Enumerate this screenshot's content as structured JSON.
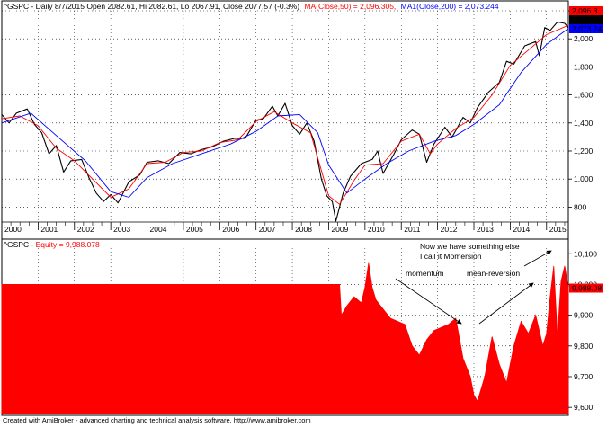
{
  "chart_data": [
    {
      "type": "line",
      "header": {
        "symbol_text": "^GSPC - Daily 8/7/2015 Open 2082.61, Hi 2082.61, Lo 2067.91, Close 2077.57 (-0.3%)",
        "ma50_text": "MA(Close,50) = 2,096.305,",
        "ma200_text": "MA1(Close,200) = 2,073.244"
      },
      "colors": {
        "price": "#000000",
        "ma50": "#ff0000",
        "ma200": "#0000ff"
      },
      "ylim": [
        700,
        2200
      ],
      "y_ticks": [
        800,
        1000,
        1200,
        1400,
        1600,
        1800,
        2000,
        2200
      ],
      "y_tick_labels": [
        "800",
        "1,000",
        "1,200",
        "1,400",
        "1,600",
        "1,800",
        "2,000",
        "2,200"
      ],
      "x_ticks": [
        "2000",
        "2001",
        "2002",
        "2003",
        "2004",
        "2005",
        "2006",
        "2007",
        "2008",
        "2009",
        "2010",
        "2011",
        "2012",
        "2013",
        "2014",
        "2015"
      ],
      "xlim": [
        2000.0,
        2015.6
      ],
      "last_labels": [
        {
          "text": "2,096.3",
          "value": 2096.3,
          "bg": "#ff0000",
          "fg": "#ffffff"
        },
        {
          "text": "2,077.57",
          "value": 2077.57,
          "bg": "#000000",
          "fg": "#ffffff"
        },
        {
          "text": "2,073.24",
          "value": 2073.24,
          "bg": "#0000ff",
          "fg": "#ffffff"
        }
      ],
      "series": [
        {
          "name": "^GSPC",
          "x": [
            2000.0,
            2000.2,
            2000.4,
            2000.7,
            2000.9,
            2001.1,
            2001.3,
            2001.5,
            2001.7,
            2001.9,
            2002.2,
            2002.4,
            2002.6,
            2002.8,
            2003.0,
            2003.2,
            2003.5,
            2003.8,
            2004.0,
            2004.3,
            2004.6,
            2004.9,
            2005.2,
            2005.5,
            2005.8,
            2006.1,
            2006.4,
            2006.7,
            2007.0,
            2007.2,
            2007.45,
            2007.6,
            2007.8,
            2008.0,
            2008.2,
            2008.4,
            2008.6,
            2008.8,
            2008.95,
            2009.1,
            2009.2,
            2009.4,
            2009.6,
            2009.9,
            2010.2,
            2010.35,
            2010.5,
            2010.8,
            2011.0,
            2011.3,
            2011.5,
            2011.7,
            2011.9,
            2012.2,
            2012.4,
            2012.7,
            2012.9,
            2013.1,
            2013.4,
            2013.7,
            2013.9,
            2014.1,
            2014.4,
            2014.7,
            2014.8,
            2014.95,
            2015.1,
            2015.3,
            2015.5,
            2015.6
          ],
          "y": [
            1460,
            1400,
            1470,
            1500,
            1390,
            1330,
            1180,
            1240,
            1050,
            1130,
            1140,
            1010,
            900,
            840,
            890,
            830,
            980,
            1030,
            1120,
            1130,
            1110,
            1190,
            1180,
            1210,
            1230,
            1270,
            1290,
            1290,
            1420,
            1430,
            1520,
            1450,
            1540,
            1380,
            1320,
            1400,
            1270,
            1000,
            880,
            840,
            700,
            900,
            1020,
            1110,
            1140,
            1200,
            1040,
            1180,
            1280,
            1350,
            1320,
            1120,
            1250,
            1370,
            1300,
            1440,
            1400,
            1510,
            1620,
            1690,
            1840,
            1820,
            1950,
            1980,
            1880,
            2080,
            2060,
            2120,
            2110,
            2078
          ]
        },
        {
          "name": "MA(Close,50)",
          "x": [
            2000.0,
            2000.5,
            2001.0,
            2001.5,
            2002.0,
            2002.5,
            2003.0,
            2003.5,
            2004.0,
            2004.5,
            2005.0,
            2005.5,
            2006.0,
            2006.5,
            2007.0,
            2007.5,
            2008.0,
            2008.5,
            2009.0,
            2009.3,
            2009.7,
            2010.0,
            2010.5,
            2011.0,
            2011.5,
            2011.8,
            2012.0,
            2012.5,
            2013.0,
            2013.5,
            2014.0,
            2014.5,
            2015.0,
            2015.6
          ],
          "y": [
            1430,
            1450,
            1380,
            1220,
            1130,
            1000,
            870,
            930,
            1110,
            1120,
            1190,
            1200,
            1260,
            1280,
            1410,
            1480,
            1400,
            1330,
            880,
            820,
            990,
            1100,
            1110,
            1270,
            1320,
            1180,
            1250,
            1360,
            1440,
            1600,
            1810,
            1920,
            2030,
            2096
          ]
        },
        {
          "name": "MA1(Close,200)",
          "x": [
            2000.0,
            2000.8,
            2001.5,
            2002.3,
            2003.0,
            2003.5,
            2004.0,
            2004.7,
            2005.5,
            2006.3,
            2007.0,
            2007.6,
            2008.2,
            2008.7,
            2009.0,
            2009.5,
            2010.0,
            2010.6,
            2011.2,
            2011.9,
            2012.5,
            2013.0,
            2013.7,
            2014.3,
            2015.0,
            2015.6
          ],
          "y": [
            1400,
            1470,
            1310,
            1130,
            910,
            870,
            1010,
            1110,
            1180,
            1250,
            1340,
            1450,
            1460,
            1330,
            1100,
            900,
            1000,
            1110,
            1200,
            1270,
            1310,
            1390,
            1530,
            1760,
            1960,
            2073
          ]
        }
      ]
    },
    {
      "type": "area",
      "header": {
        "symbol_text": "^GSPC - ",
        "equity_text": "Equity = 9,988.078"
      },
      "colors": {
        "fill": "#ff0000"
      },
      "ylim": [
        9580,
        10130
      ],
      "y_ticks": [
        9600,
        9700,
        9800,
        9900,
        10000,
        10100
      ],
      "y_tick_labels": [
        "9,600",
        "9,700",
        "9,800",
        "9,900",
        "10,000",
        "10,100"
      ],
      "last_label": {
        "text": "9,988.08",
        "value": 9988.08,
        "bg": "#ff0000",
        "fg": "#ffffff"
      },
      "annotations": [
        {
          "text": "Now we have something else"
        },
        {
          "text": "I call it Momersion"
        },
        {
          "text": "momentum"
        },
        {
          "text": "mean-reversion"
        }
      ],
      "series": [
        {
          "name": "Equity",
          "x": [
            2000.0,
            2009.3,
            2009.35,
            2009.5,
            2009.7,
            2009.9,
            2010.0,
            2010.1,
            2010.2,
            2010.3,
            2010.5,
            2010.7,
            2010.9,
            2011.1,
            2011.3,
            2011.5,
            2011.7,
            2011.9,
            2012.1,
            2012.3,
            2012.5,
            2012.7,
            2012.9,
            2013.0,
            2013.1,
            2013.3,
            2013.5,
            2013.7,
            2013.9,
            2014.1,
            2014.3,
            2014.5,
            2014.7,
            2014.9,
            2015.0,
            2015.1,
            2015.2,
            2015.3,
            2015.4,
            2015.5,
            2015.6
          ],
          "y": [
            10000,
            10000,
            9900,
            9930,
            9960,
            9940,
            9990,
            10070,
            9990,
            9950,
            9920,
            9890,
            9880,
            9870,
            9800,
            9770,
            9820,
            9850,
            9860,
            9870,
            9890,
            9760,
            9700,
            9640,
            9620,
            9700,
            9830,
            9740,
            9680,
            9800,
            9880,
            9840,
            9900,
            9800,
            9840,
            9960,
            10060,
            9830,
            10010,
            10060,
            9988
          ]
        }
      ]
    }
  ],
  "footer": "Created with AmiBroker - advanced charting and technical analysis software. http://www.amibroker.com"
}
